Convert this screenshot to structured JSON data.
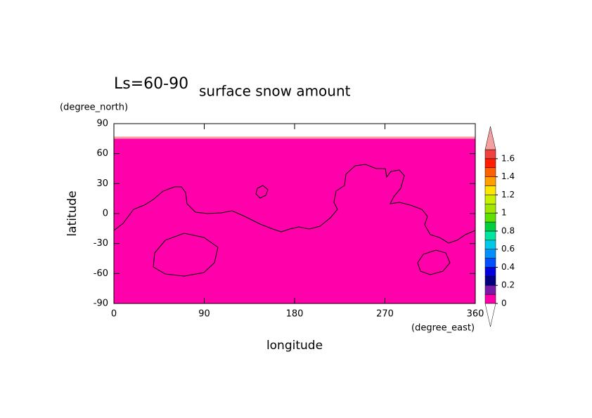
{
  "chart_data": {
    "type": "contour",
    "subtitle": "Ls=60-90",
    "title": "surface snow amount",
    "x_label": "longitude",
    "y_label": "latitude",
    "x_unit": "(degree_east)",
    "y_unit": "(degree_north)",
    "xlim": [
      0,
      360
    ],
    "ylim": [
      -90,
      90
    ],
    "xticks": [
      0,
      90,
      180,
      270,
      360
    ],
    "yticks": [
      -90,
      -60,
      -30,
      0,
      30,
      60,
      90
    ],
    "bands": [
      {
        "lat": [
          -90,
          75
        ],
        "value": 0
      },
      {
        "lat": [
          75,
          77
        ],
        "value": 2
      }
    ],
    "colorbar": {
      "levels": [
        0,
        0.1,
        0.2,
        0.3,
        0.4,
        0.5,
        0.6,
        0.7,
        0.8,
        0.9,
        1,
        1.1,
        1.2,
        1.3,
        1.4,
        1.5,
        1.6,
        1.7
      ],
      "colors": [
        "#ff00aa",
        "#7a1aa8",
        "#000080",
        "#0000e0",
        "#0050ff",
        "#0090ff",
        "#00c8e6",
        "#00e6a0",
        "#00d040",
        "#60e000",
        "#a0e600",
        "#c8f000",
        "#ffe600",
        "#ffa000",
        "#ff6000",
        "#ff1e00",
        "#f04040"
      ],
      "under_color": "#ffffff",
      "over_color": "#f4a0a0",
      "ticks": [
        0,
        0.2,
        0.4,
        0.6,
        0.8,
        1,
        1.2,
        1.4,
        1.6
      ]
    }
  }
}
